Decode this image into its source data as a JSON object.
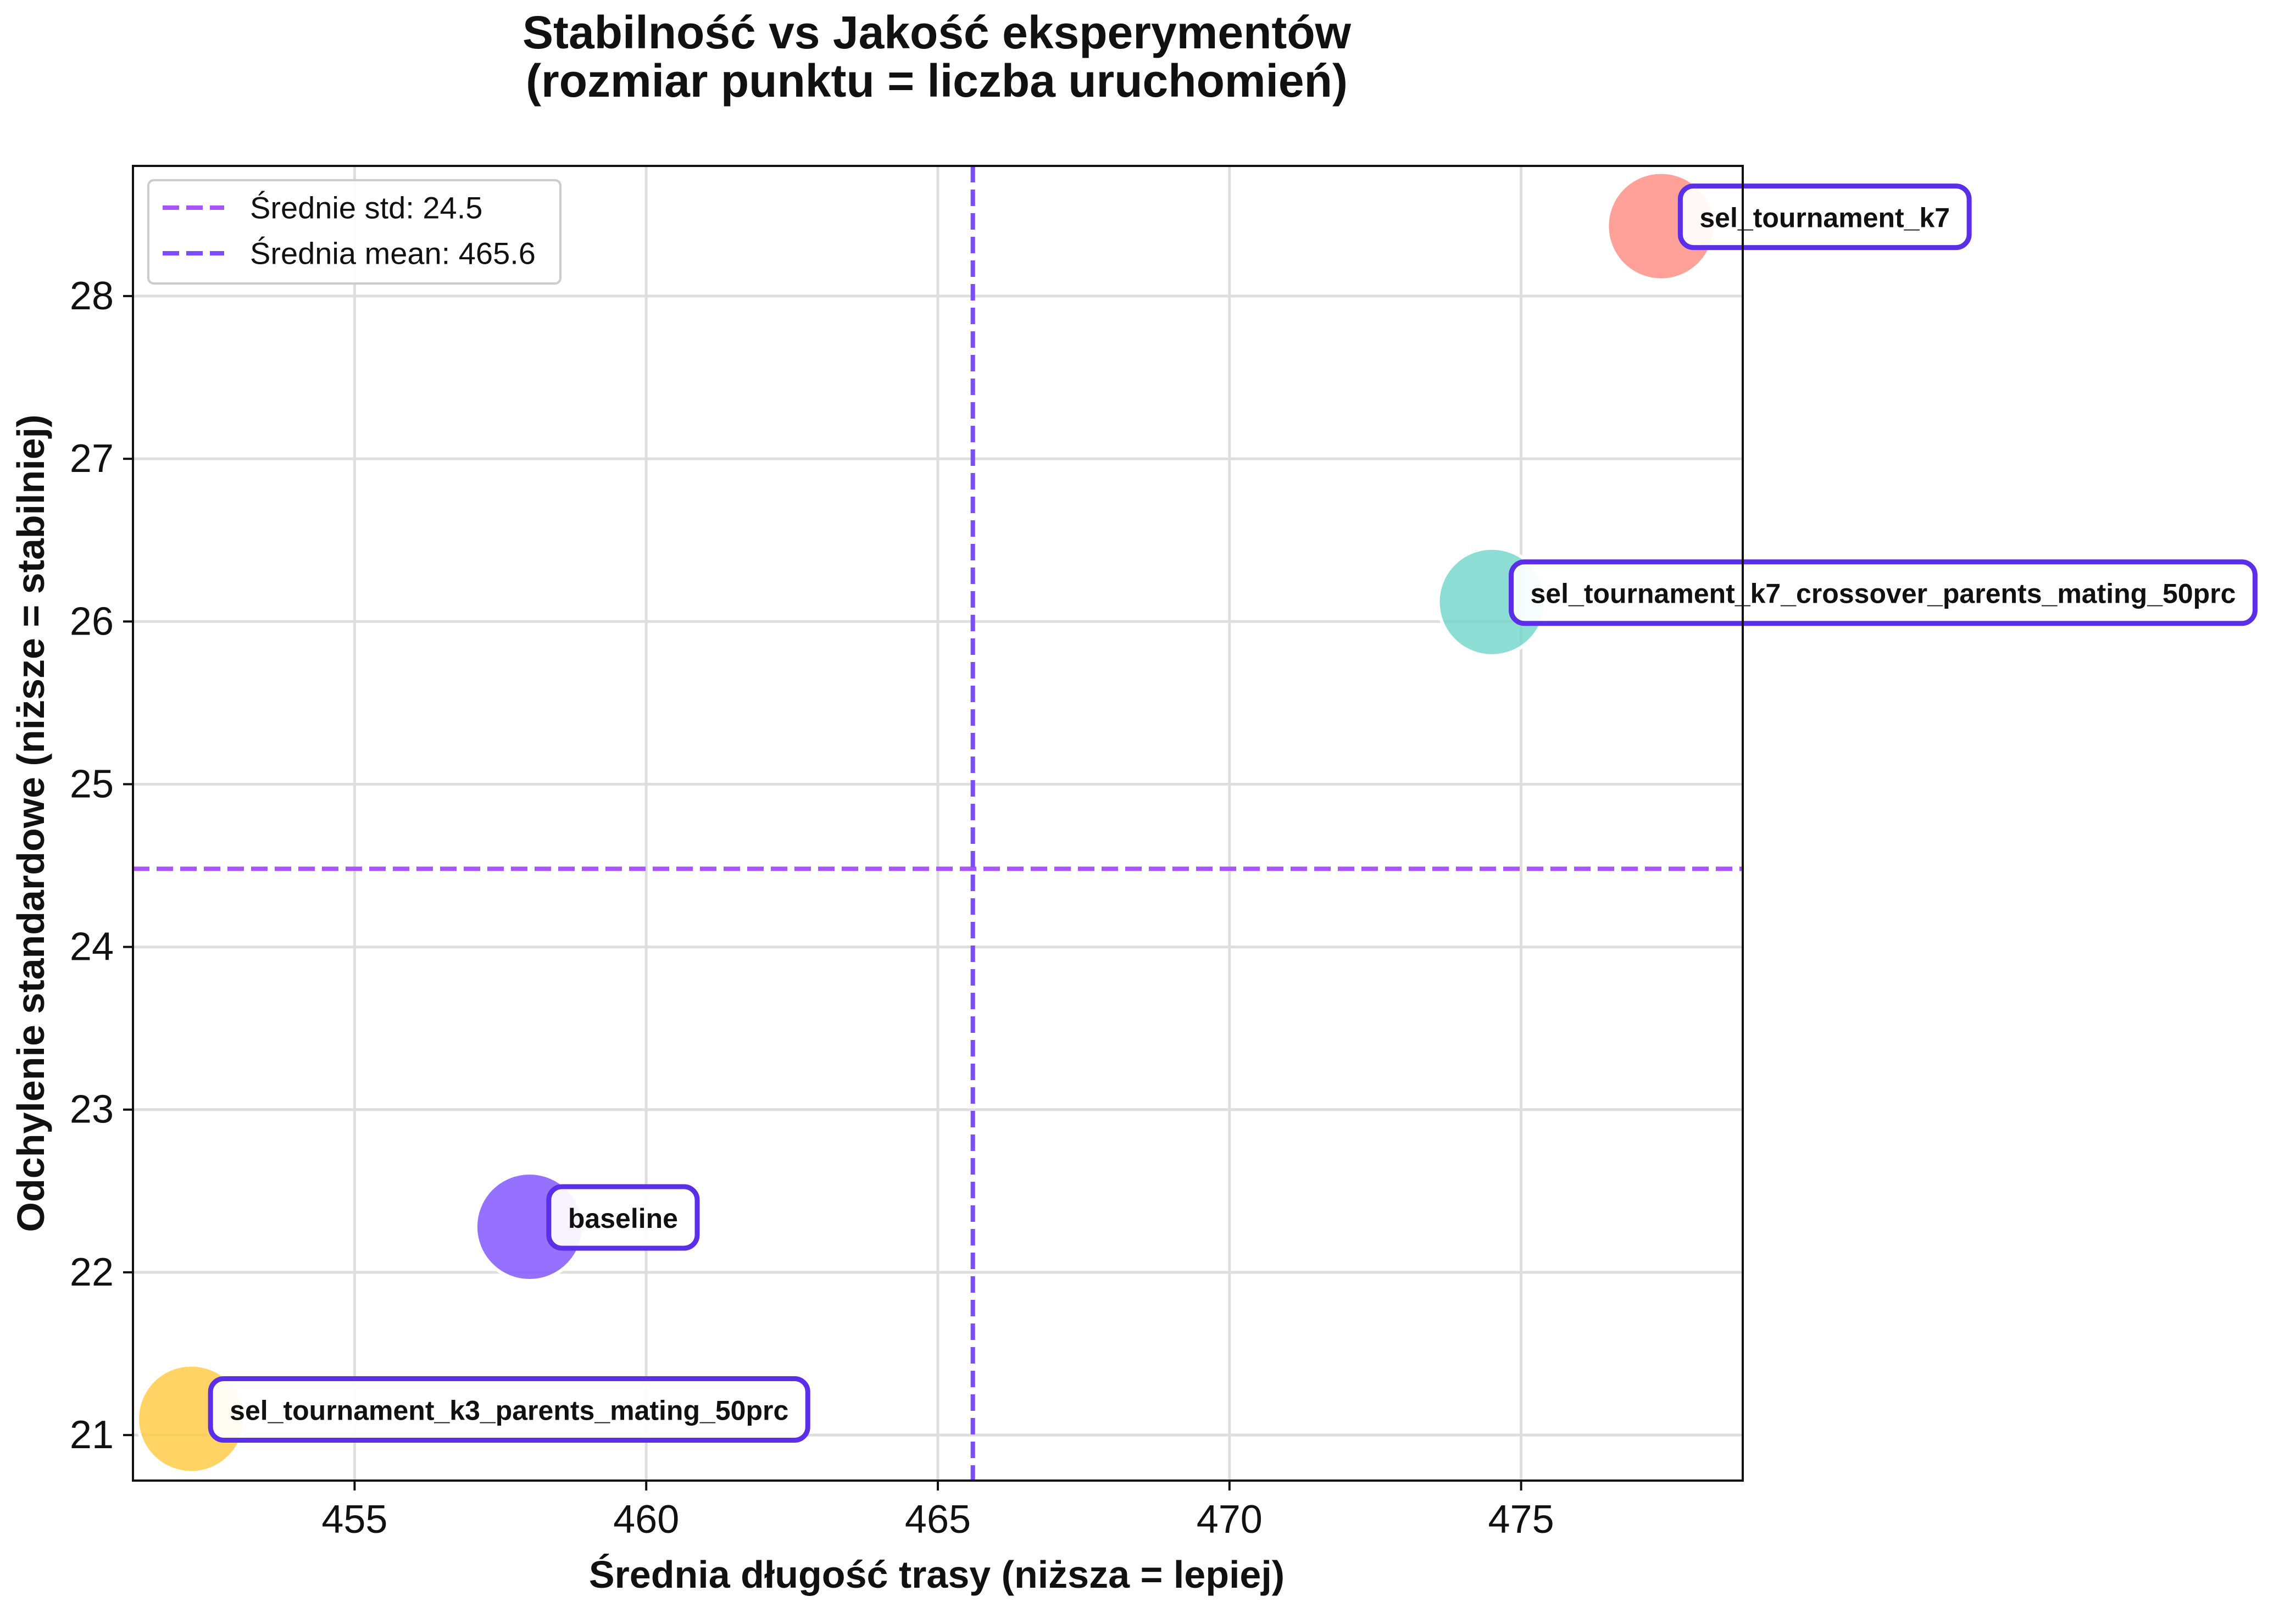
{
  "chart_data": {
    "type": "scatter",
    "title": [
      "Stabilność vs Jakość eksperymentów",
      "(rozmiar punktu = liczba uruchomień)"
    ],
    "xlabel": "Średnia długość trasy (niższa = lepiej)",
    "ylabel": "Odchylenie standardowe (niższe = stabilniej)",
    "xlim": [
      451.2,
      478.8
    ],
    "ylim": [
      20.72,
      28.8
    ],
    "xticks": [
      455,
      460,
      465,
      470,
      475
    ],
    "yticks": [
      21,
      22,
      23,
      24,
      25,
      26,
      27,
      28
    ],
    "grid": true,
    "legend": {
      "placement": "top-left",
      "entries": [
        {
          "label": "Średnie std: 24.5",
          "color": "#a855f7"
        },
        {
          "label": "Średnia mean: 465.6",
          "color": "#7c4dff"
        }
      ]
    },
    "reference_lines": [
      {
        "orientation": "horizontal",
        "value": 24.48,
        "color": "#a855f7"
      },
      {
        "orientation": "vertical",
        "value": 465.6,
        "color": "#7c4dff"
      }
    ],
    "points": [
      {
        "label": "sel_tournament_k7",
        "x": 477.4,
        "y": 28.43,
        "color": "#ff8a80"
      },
      {
        "label": "sel_tournament_k7_crossover_parents_mating_50prc",
        "x": 474.5,
        "y": 26.12,
        "color": "#6fd6cb"
      },
      {
        "label": "baseline",
        "x": 458.0,
        "y": 22.28,
        "color": "#7c4dff"
      },
      {
        "label": "sel_tournament_k3_parents_mating_50prc",
        "x": 452.2,
        "y": 21.1,
        "color": "#ffc83d"
      }
    ],
    "label_border_color": "#5b2ee8"
  }
}
